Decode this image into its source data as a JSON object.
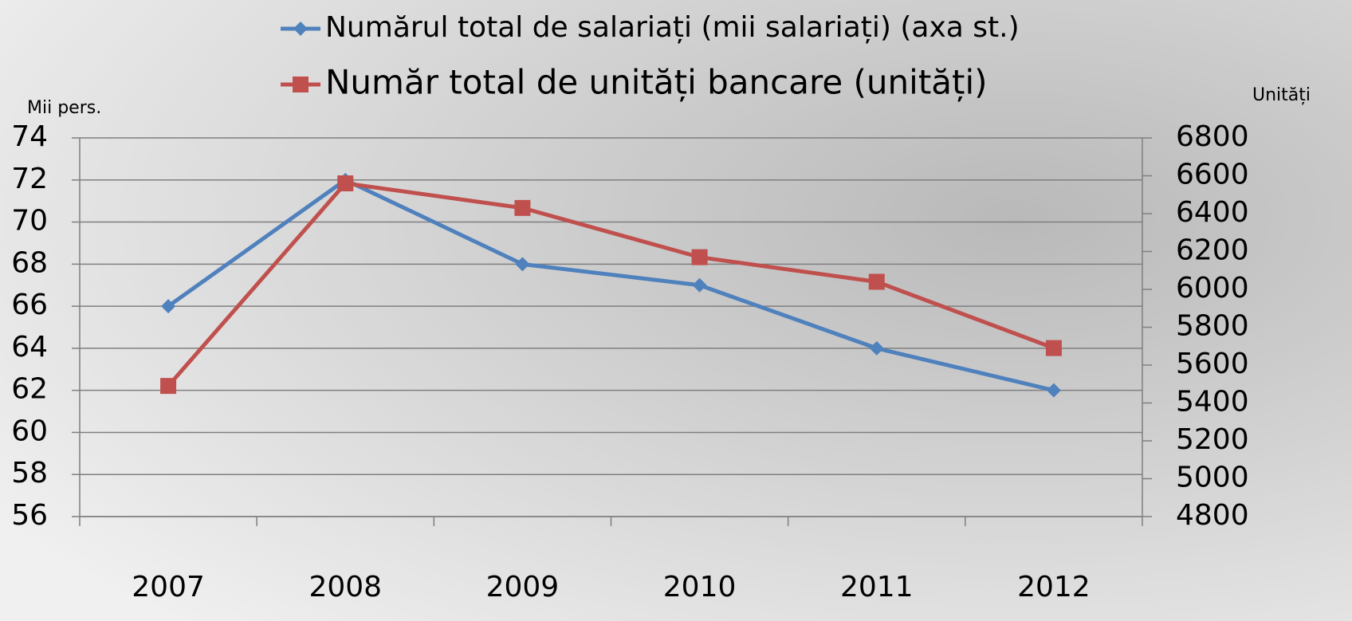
{
  "chart_data": {
    "type": "line",
    "categories": [
      "2007",
      "2008",
      "2009",
      "2010",
      "2011",
      "2012"
    ],
    "series": [
      {
        "name": "Numărul total de salariați (mii salariați) (axa st.)",
        "color": "#4f81bd",
        "marker": "diamond",
        "values": [
          66,
          72,
          68,
          67,
          64,
          62
        ]
      },
      {
        "name": "Număr total de unități bancare (unități)",
        "color": "#c0504d",
        "marker": "square",
        "axis": "y2",
        "values": [
          5490,
          6560,
          6430,
          6170,
          6040,
          5690
        ]
      }
    ],
    "y_label": "Mii pers.",
    "y2_label": "Unități",
    "ylim": [
      56,
      74
    ],
    "yticks": [
      56,
      58,
      60,
      62,
      64,
      66,
      68,
      70,
      72,
      74
    ],
    "y2lim": [
      4800,
      6800
    ],
    "y2ticks": [
      4800,
      5000,
      5200,
      5400,
      5600,
      5800,
      6000,
      6200,
      6400,
      6600,
      6800
    ],
    "grid": true,
    "legend": "top"
  }
}
